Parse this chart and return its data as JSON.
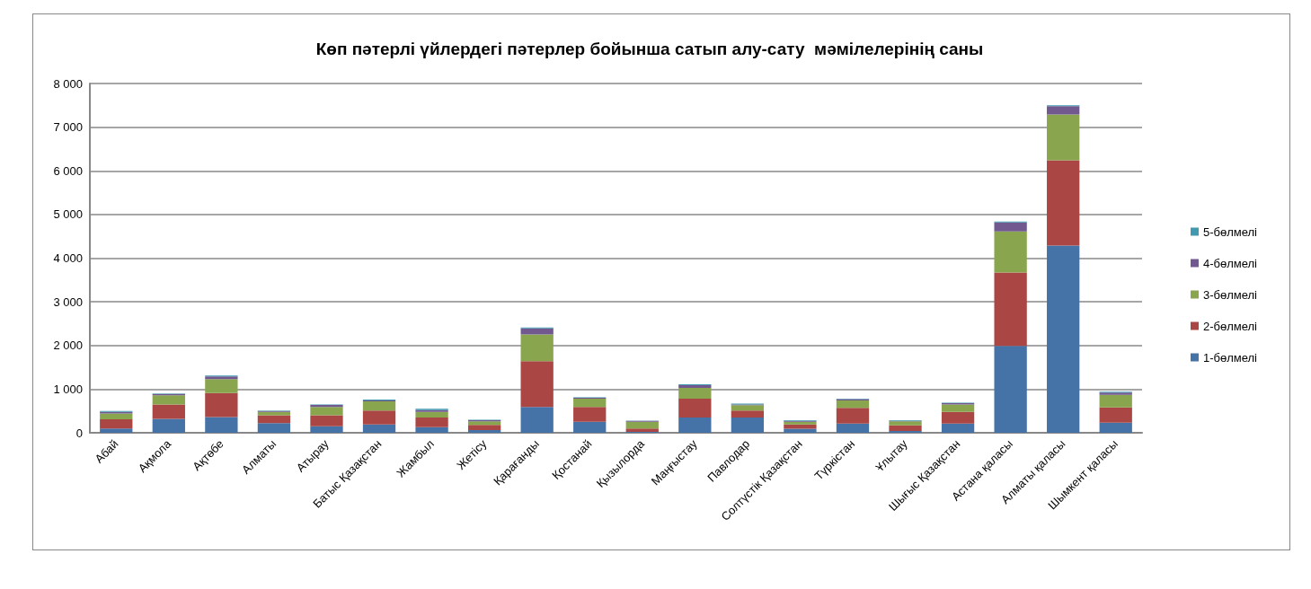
{
  "chart_data": {
    "type": "bar",
    "title": "Көп пәтерлі үйлердегі пәтерлер бойынша сатып алу-сату  мәмілелерінің саны",
    "categories": [
      "Абай",
      "Ақмола",
      "Ақтөбе",
      "Алматы",
      "Атырау",
      "Батыс Қазақстан",
      "Жамбыл",
      "Жетісу",
      "Қарағанды",
      "Қостанай",
      "Қызылорда",
      "Маңғыстау",
      "Павлодар",
      "Солтүстік Қазақстан",
      "Түркістан",
      "Ұлытау",
      "Шығыс Қазақстан",
      "Астана қаласы",
      "Алматы қаласы",
      "Шымкент қаласы"
    ],
    "stacked": true,
    "series": [
      {
        "name": "1-бөлмелі",
        "color": "#4572a7",
        "values": [
          100,
          320,
          360,
          220,
          150,
          190,
          130,
          60,
          590,
          250,
          20,
          350,
          350,
          90,
          210,
          40,
          210,
          1990,
          4290,
          230
        ]
      },
      {
        "name": "2-бөлмелі",
        "color": "#aa4643",
        "values": [
          210,
          330,
          550,
          180,
          250,
          320,
          220,
          120,
          1050,
          340,
          80,
          430,
          160,
          100,
          360,
          130,
          270,
          1680,
          1950,
          350
        ]
      },
      {
        "name": "3-бөлмелі",
        "color": "#89a54e",
        "values": [
          130,
          210,
          320,
          80,
          190,
          210,
          130,
          80,
          610,
          190,
          150,
          250,
          120,
          60,
          170,
          90,
          170,
          940,
          1050,
          290
        ]
      },
      {
        "name": "4-бөлмелі",
        "color": "#71588f",
        "values": [
          40,
          30,
          60,
          20,
          50,
          20,
          40,
          30,
          140,
          20,
          20,
          60,
          20,
          20,
          30,
          10,
          30,
          210,
          190,
          50
        ]
      },
      {
        "name": "5-бөлмелі",
        "color": "#4198af",
        "values": [
          20,
          10,
          20,
          10,
          10,
          20,
          30,
          10,
          20,
          10,
          10,
          20,
          20,
          20,
          10,
          20,
          10,
          20,
          20,
          20
        ]
      }
    ],
    "ylim": [
      0,
      8000
    ],
    "yticks": [
      0,
      {
        "value": 1000,
        "label": "1 000"
      },
      {
        "value": 2000,
        "label": "2 000"
      },
      {
        "value": 3000,
        "label": "3 000"
      },
      {
        "value": 4000,
        "label": "4 000"
      },
      {
        "value": 5000,
        "label": "5 000"
      },
      {
        "value": 6000,
        "label": "6 000"
      },
      {
        "value": 7000,
        "label": "7 000"
      },
      {
        "value": 8000,
        "label": "8 000"
      }
    ],
    "grid": "y",
    "legend": "right"
  }
}
